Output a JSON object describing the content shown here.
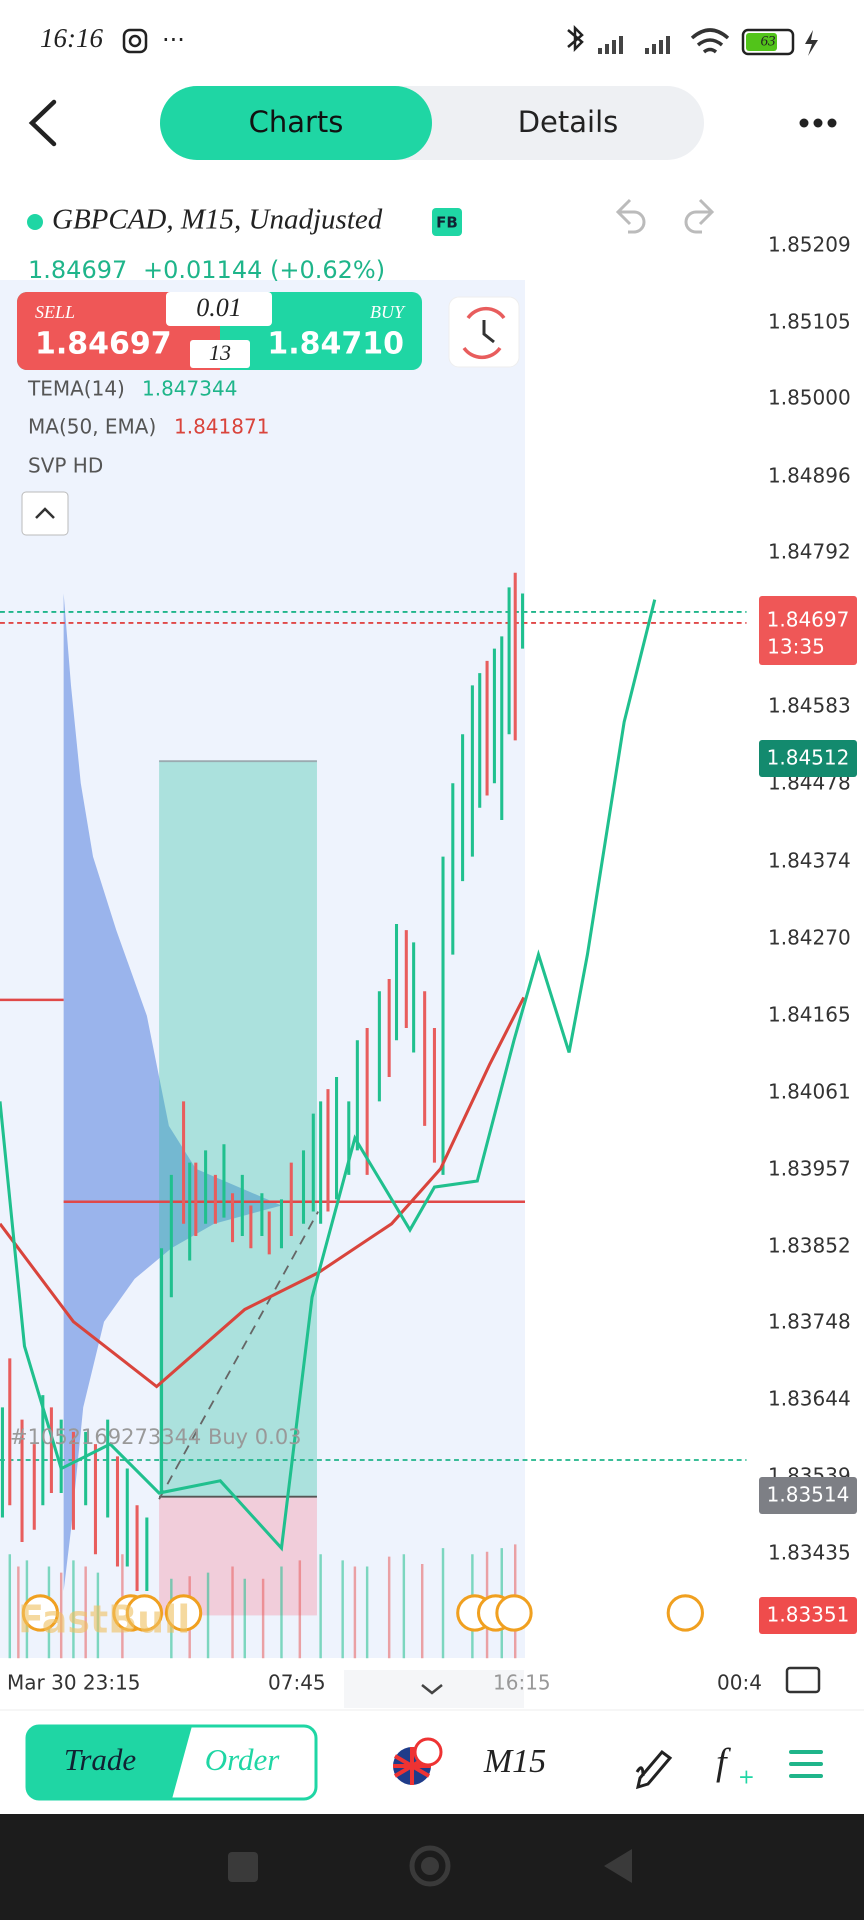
{
  "status_bar": {
    "time": "16:16",
    "battery": "63"
  },
  "header": {
    "tabs": [
      "Charts",
      "Details"
    ]
  },
  "symbol": {
    "name": "GBPCAD, M15, Unadjusted",
    "badge": "FB",
    "price": "1.84697",
    "change": "+0.01144 (+0.62%)"
  },
  "trade_panel": {
    "sell_label": "SELL",
    "sell_price": "1.84697",
    "lot": "0.01",
    "spread": "13",
    "buy_label": "BUY",
    "buy_price": "1.84710"
  },
  "indicators": [
    {
      "name": "TEMA(14)",
      "value": "1.847344"
    },
    {
      "name": "MA(50, EMA)",
      "value": "1.841871"
    },
    {
      "name": "SVP HD"
    }
  ],
  "price_axis": [
    "1.85209",
    "1.85105",
    "1.85000",
    "1.84896",
    "1.84792",
    "1.84583",
    "1.84478",
    "1.84374",
    "1.84270",
    "1.84165",
    "1.84061",
    "1.83957",
    "1.83852",
    "1.83748",
    "1.83644",
    "1.83539",
    "1.83435"
  ],
  "price_tags": [
    {
      "price": "1.84697",
      "countdown": "13:35"
    },
    {
      "price": "1.84512"
    },
    {
      "price": "1.83514"
    },
    {
      "price": "1.83351"
    }
  ],
  "order_label": "#1052169273344 Buy 0.03",
  "watermark": "FastBull",
  "time_axis": [
    "Mar 30 23:15",
    "07:45",
    "16:15",
    "00:4"
  ],
  "bottom_bar": {
    "trade": "Trade",
    "order": "Order",
    "timeframe": "M15"
  }
}
